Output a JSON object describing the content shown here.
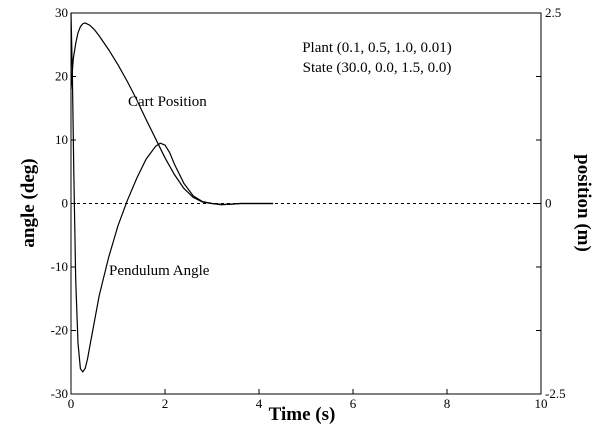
{
  "chart_data": {
    "type": "line",
    "xlabel": "Time (s)",
    "ylabel": "angle (deg)",
    "y2label": "position (m)",
    "xlim": [
      0,
      10
    ],
    "ylim": [
      -30,
      30
    ],
    "y2lim": [
      -2.5,
      2.5
    ],
    "x_ticks": [
      "0",
      "2",
      "4",
      "6",
      "8",
      "10"
    ],
    "y_ticks": [
      "-30",
      "-20",
      "-10",
      "0",
      "10",
      "20",
      "30"
    ],
    "y2_ticks": [
      "-2.5",
      "0",
      "2.5"
    ],
    "grid": false,
    "zero_line": "dashed",
    "annotations": [
      {
        "text": "Plant (0.1, 0.5, 1.0, 0.01)"
      },
      {
        "text": "State (30.0, 0.0, 1.5, 0.0)"
      },
      {
        "text": "Cart Position"
      },
      {
        "text": "Pendulum Angle"
      }
    ],
    "series": [
      {
        "name": "Cart Position",
        "axis": "right",
        "x": [
          0,
          0.05,
          0.1,
          0.15,
          0.2,
          0.25,
          0.3,
          0.4,
          0.5,
          0.6,
          0.8,
          1.0,
          1.2,
          1.4,
          1.6,
          1.8,
          2.0,
          2.2,
          2.4,
          2.6,
          2.8,
          3.0,
          3.2,
          3.4,
          3.6,
          4.0,
          4.3
        ],
        "y": [
          1.5,
          1.9,
          2.1,
          2.24,
          2.32,
          2.36,
          2.37,
          2.34,
          2.28,
          2.2,
          2.02,
          1.82,
          1.6,
          1.36,
          1.1,
          0.85,
          0.6,
          0.38,
          0.2,
          0.08,
          0.02,
          0.0,
          -0.01,
          -0.01,
          0.0,
          0.0,
          0.0
        ]
      },
      {
        "name": "Pendulum Angle",
        "axis": "left",
        "x": [
          0,
          0.03,
          0.06,
          0.1,
          0.15,
          0.2,
          0.25,
          0.3,
          0.35,
          0.4,
          0.5,
          0.6,
          0.8,
          1.0,
          1.2,
          1.4,
          1.6,
          1.8,
          1.9,
          2.0,
          2.1,
          2.2,
          2.4,
          2.6,
          2.8,
          3.0,
          3.2,
          3.4,
          3.6,
          3.8,
          4.0,
          4.3
        ],
        "y": [
          30.0,
          20.0,
          5.0,
          -12.0,
          -22.0,
          -26.0,
          -26.5,
          -26.0,
          -24.5,
          -22.5,
          -18.5,
          -14.5,
          -8.5,
          -3.5,
          0.5,
          4.0,
          7.0,
          9.0,
          9.5,
          9.2,
          8.0,
          6.2,
          3.2,
          1.2,
          0.3,
          0.0,
          -0.2,
          -0.1,
          0.0,
          0.0,
          0.0,
          0.0
        ]
      }
    ]
  }
}
